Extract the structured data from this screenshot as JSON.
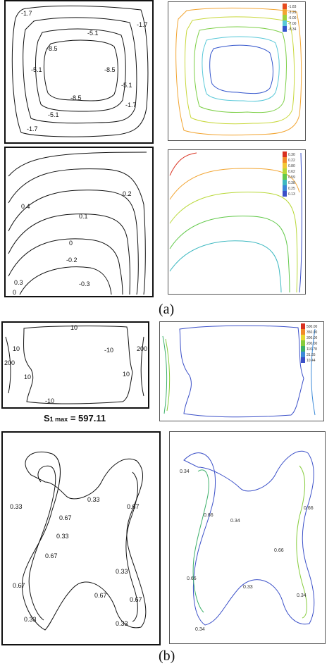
{
  "caption_a": "(a)",
  "caption_b": "(b)",
  "smax": {
    "prefix": "S",
    "sub": "1 max",
    "value": "= 597.11"
  },
  "panel1": {
    "labels": [
      "-1.7",
      "-5.1",
      "-8.5",
      "-8.5",
      "-8.5",
      "-5.1",
      "-5.1",
      "-1.7",
      "-1.7",
      "-1.7",
      "-5.1"
    ]
  },
  "panel2": {
    "legend": [
      "-1.83",
      "-3.29",
      "-6.00",
      "-7.00",
      "-8.34"
    ],
    "legend_colors": [
      "#e64b1f",
      "#f2a532",
      "#9ed23c",
      "#58c8d8",
      "#3355cc"
    ]
  },
  "panel3": {
    "labels": [
      "0.4",
      "0.2",
      "0.1",
      "0",
      "-0.2",
      "-0.3",
      "0.3",
      "0"
    ]
  },
  "panel4": {
    "legend": [
      "0.30",
      "0.22",
      "0.80",
      "0.62",
      "0.59",
      "0.38",
      "0.25",
      "0.13"
    ],
    "legend_colors": [
      "#d9301f",
      "#f28a2a",
      "#f2c734",
      "#b8d838",
      "#62c94a",
      "#3cb8c0",
      "#3a86d8",
      "#3a4fc8"
    ]
  },
  "panel5": {
    "labels": [
      "10",
      "10",
      "-10",
      "10",
      "10",
      "-10",
      "200",
      "200"
    ]
  },
  "panel6": {
    "legend": [
      "500.00",
      "350.00",
      "300.00",
      "200.00",
      "110.78",
      "31.55",
      "10.44"
    ],
    "legend_colors": [
      "#d9301f",
      "#f28a2a",
      "#e6d834",
      "#86cc3c",
      "#3cb06a",
      "#3c8ad8",
      "#3a4fc8"
    ]
  },
  "panel7": {
    "labels": [
      "0.33",
      "0.67",
      "0.33",
      "0.67",
      "0.33",
      "0.67",
      "0.67",
      "0.33",
      "0.67",
      "0.33",
      "0.67",
      "0.33"
    ]
  },
  "panel8": {
    "labels": [
      "0.34",
      "0.66",
      "0.34",
      "0.66",
      "0.33",
      "0.66",
      "0.34",
      "0.66",
      "0.34"
    ]
  }
}
